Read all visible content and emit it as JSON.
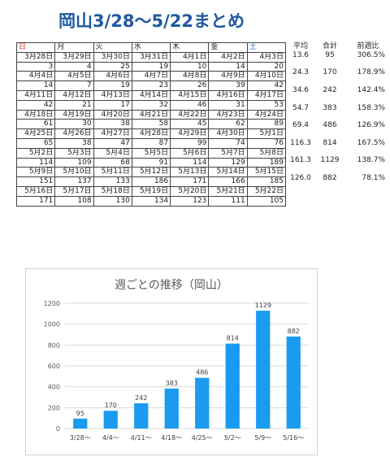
{
  "title": "岡山3/28〜5/22まとめ",
  "calendar": {
    "weekdays": [
      "日",
      "月",
      "火",
      "水",
      "木",
      "金",
      "土"
    ],
    "weeks": [
      {
        "dates": [
          "3月28日",
          "3月29日",
          "3月30日",
          "3月31日",
          "4月1日",
          "4月2日",
          "4月3日"
        ],
        "counts": [
          "3",
          "4",
          "25",
          "19",
          "10",
          "14",
          "20"
        ]
      },
      {
        "dates": [
          "4月4日",
          "4月5日",
          "4月6日",
          "4月7日",
          "4月8日",
          "4月9日",
          "4月10日"
        ],
        "counts": [
          "14",
          "7",
          "19",
          "23",
          "26",
          "39",
          "42"
        ]
      },
      {
        "dates": [
          "4月11日",
          "4月12日",
          "4月13日",
          "4月14日",
          "4月15日",
          "4月16日",
          "4月17日"
        ],
        "counts": [
          "42",
          "21",
          "17",
          "32",
          "46",
          "31",
          "53"
        ]
      },
      {
        "dates": [
          "4月18日",
          "4月19日",
          "4月20日",
          "4月21日",
          "4月22日",
          "4月23日",
          "4月24日"
        ],
        "counts": [
          "61",
          "30",
          "38",
          "58",
          "45",
          "62",
          "89"
        ]
      },
      {
        "dates": [
          "4月25日",
          "4月26日",
          "4月27日",
          "4月28日",
          "4月29日",
          "4月30日",
          "5月1日"
        ],
        "counts": [
          "65",
          "38",
          "47",
          "87",
          "99",
          "74",
          "76"
        ]
      },
      {
        "dates": [
          "5月2日",
          "5月3日",
          "5月4日",
          "5月5日",
          "5月6日",
          "5月7日",
          "5月8日"
        ],
        "counts": [
          "114",
          "109",
          "68",
          "91",
          "114",
          "129",
          "189"
        ]
      },
      {
        "dates": [
          "5月9日",
          "5月10日",
          "5月11日",
          "5月12日",
          "5月13日",
          "5月14日",
          "5月15日"
        ],
        "counts": [
          "151",
          "137",
          "133",
          "186",
          "171",
          "166",
          "185"
        ]
      },
      {
        "dates": [
          "5月16日",
          "5月17日",
          "5月18日",
          "5月19日",
          "5月20日",
          "5月21日",
          "5月22日"
        ],
        "counts": [
          "171",
          "108",
          "130",
          "134",
          "123",
          "111",
          "105"
        ]
      }
    ]
  },
  "stats": {
    "headers": [
      "平均",
      "合計",
      "前週比"
    ],
    "rows": [
      [
        "13.6",
        "95",
        "306.5%"
      ],
      [
        "24.3",
        "170",
        "178.9%"
      ],
      [
        "34.6",
        "242",
        "142.4%"
      ],
      [
        "54.7",
        "383",
        "158.3%"
      ],
      [
        "69.4",
        "486",
        "126.9%"
      ],
      [
        "116.3",
        "814",
        "167.5%"
      ],
      [
        "161.3",
        "1129",
        "138.7%"
      ],
      [
        "126.0",
        "882",
        "78.1%"
      ]
    ]
  },
  "colors": {
    "title": "#1f5aa0",
    "bar": "#1a9bf0",
    "sunday": "#d23b2f",
    "saturday": "#2d6bd6"
  },
  "chart_data": {
    "type": "bar",
    "title": "週ごとの推移（岡山）",
    "categories": [
      "3/28〜",
      "4/4〜",
      "4/11〜",
      "4/18〜",
      "4/25〜",
      "5/2〜",
      "5/9〜",
      "5/16〜"
    ],
    "values": [
      95,
      170,
      242,
      383,
      486,
      814,
      1129,
      882
    ],
    "yticks": [
      0,
      200,
      400,
      600,
      800,
      1000,
      1200
    ],
    "ylim": [
      0,
      1200
    ],
    "grid": true,
    "data_labels": true,
    "legend": "none"
  }
}
